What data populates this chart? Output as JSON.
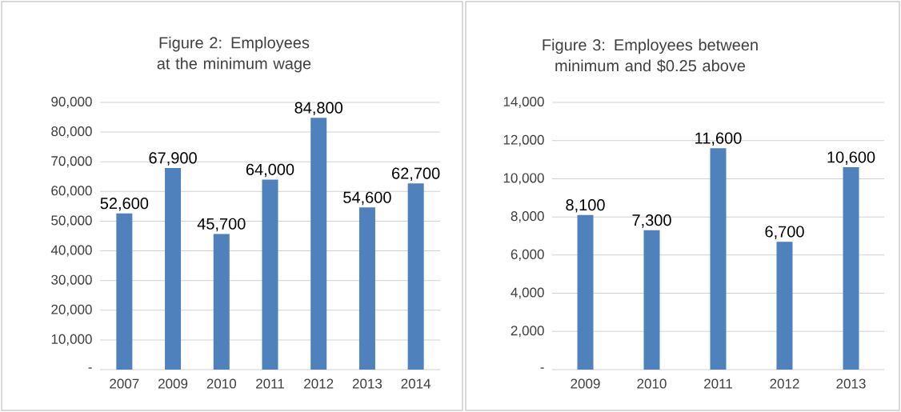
{
  "chart_data": [
    {
      "type": "bar",
      "title": "Figure 2: Employees at the minimum wage",
      "categories": [
        "2007",
        "2009",
        "2010",
        "2011",
        "2012",
        "2013",
        "2014"
      ],
      "values": [
        52600,
        67900,
        45700,
        64000,
        84800,
        54600,
        62700
      ],
      "value_labels": [
        "52,600",
        "67,900",
        "45,700",
        "64,000",
        "84,800",
        "54,600",
        "62,700"
      ],
      "color": "#4f81bd",
      "ylim": [
        0,
        90000
      ],
      "yticks": [
        {
          "value": 0,
          "label": "-"
        },
        {
          "value": 10000,
          "label": "10,000"
        },
        {
          "value": 20000,
          "label": "20,000"
        },
        {
          "value": 30000,
          "label": "30,000"
        },
        {
          "value": 40000,
          "label": "40,000"
        },
        {
          "value": 50000,
          "label": "50,000"
        },
        {
          "value": 60000,
          "label": "60,000"
        },
        {
          "value": 70000,
          "label": "70,000"
        },
        {
          "value": 80000,
          "label": "80,000"
        },
        {
          "value": 90000,
          "label": "90,000"
        }
      ],
      "grid": "y"
    },
    {
      "type": "bar",
      "title": "Figure 3: Employees between minimum and $0.25 above",
      "categories": [
        "2009",
        "2010",
        "2011",
        "2012",
        "2013"
      ],
      "values": [
        8100,
        7300,
        11600,
        6700,
        10600
      ],
      "value_labels": [
        "8,100",
        "7,300",
        "11,600",
        "6,700",
        "10,600"
      ],
      "color": "#4f81bd",
      "ylim": [
        0,
        14000
      ],
      "yticks": [
        {
          "value": 0,
          "label": "-"
        },
        {
          "value": 2000,
          "label": "2,000"
        },
        {
          "value": 4000,
          "label": "4,000"
        },
        {
          "value": 6000,
          "label": "6,000"
        },
        {
          "value": 8000,
          "label": "8,000"
        },
        {
          "value": 10000,
          "label": "10,000"
        },
        {
          "value": 12000,
          "label": "12,000"
        },
        {
          "value": 14000,
          "label": "14,000"
        }
      ],
      "grid": "y"
    }
  ]
}
